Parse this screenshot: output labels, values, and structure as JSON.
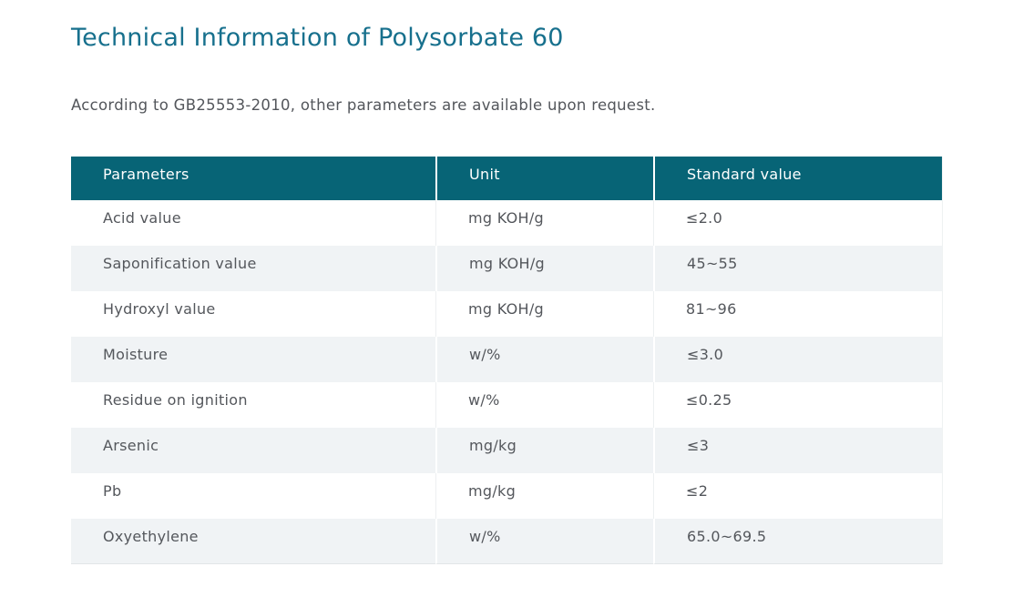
{
  "page": {
    "title": "Technical Information of Polysorbate 60",
    "subtitle": "According to GB25553-2010, other parameters are available upon request."
  },
  "table": {
    "columns": [
      "Parameters",
      "Unit",
      "Standard value"
    ],
    "rows": [
      {
        "parameter": "Acid value",
        "unit": "mg KOH/g",
        "value": "≤2.0"
      },
      {
        "parameter": "Saponification value",
        "unit": "mg KOH/g",
        "value": "45~55"
      },
      {
        "parameter": "Hydroxyl value",
        "unit": "mg KOH/g",
        "value": "81~96"
      },
      {
        "parameter": "Moisture",
        "unit": "w/%",
        "value": "≤3.0"
      },
      {
        "parameter": "Residue on ignition",
        "unit": "w/%",
        "value": "≤0.25"
      },
      {
        "parameter": "Arsenic",
        "unit": "mg/kg",
        "value": "≤3"
      },
      {
        "parameter": "Pb",
        "unit": "mg/kg",
        "value": "≤2"
      },
      {
        "parameter": "Oxyethylene",
        "unit": "w/%",
        "value": "65.0~69.5"
      }
    ]
  },
  "colors": {
    "title_text": "#17708d",
    "table_header_bg": "#076476",
    "table_header_text": "#ffffff",
    "row_alt_bg": "#f0f3f5",
    "body_text": "#54575c"
  }
}
